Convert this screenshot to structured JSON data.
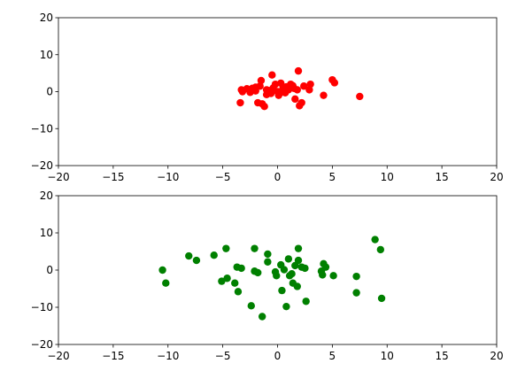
{
  "chart_data": [
    {
      "type": "scatter",
      "color": "#ff0000",
      "x": [
        -3.4,
        -3.2,
        -3.3,
        -2.8,
        -2.3,
        -2.0,
        -1.6,
        -1.5,
        -1.8,
        -1.4,
        -1.2,
        -1.0,
        -0.8,
        -0.5,
        -0.4,
        -0.2,
        0,
        0.2,
        0.3,
        0.5,
        0.7,
        1.0,
        1.2,
        1.4,
        1.6,
        1.8,
        1.9,
        2.0,
        2.2,
        2.4,
        2.9,
        3.0,
        4.2,
        5.0,
        5.2,
        7.5,
        -2.5,
        -2.0,
        -1.0,
        0.1,
        0.8,
        -0.6,
        1.5
      ],
      "values": [
        -3,
        0,
        0.5,
        0.8,
        0.9,
        1.2,
        1.5,
        3,
        -3,
        -3.3,
        -4,
        -0.8,
        0.3,
        4.5,
        1,
        2,
        0,
        -0.5,
        2.3,
        1,
        -0.3,
        0.5,
        2,
        1.6,
        -2,
        0.5,
        5.6,
        -3.8,
        -3,
        1.5,
        0.5,
        2,
        -1,
        3.2,
        2.4,
        -1.3,
        -0.2,
        0.2,
        0.5,
        -1,
        1.3,
        -0.5,
        0.9
      ],
      "xlim": [
        -20,
        20
      ],
      "xticks": [
        {
          "value": -20,
          "label": "−20"
        },
        {
          "value": -15,
          "label": "−15"
        },
        {
          "value": -10,
          "label": "−10"
        },
        {
          "value": -5,
          "label": "−5"
        },
        0,
        5,
        10,
        15,
        20
      ],
      "ylim": [
        -20,
        20
      ],
      "yticks": [
        {
          "value": -20,
          "label": "−20"
        },
        {
          "value": -10,
          "label": "−10"
        },
        0,
        10,
        20
      ]
    },
    {
      "type": "scatter",
      "color": "#008000",
      "x": [
        -10.5,
        -10.2,
        -8.1,
        -7.4,
        -5.8,
        -5.1,
        -4.7,
        -4.6,
        -3.9,
        -3.7,
        -3.6,
        -3.3,
        -2.4,
        -2.1,
        -2.1,
        -1.8,
        -1.4,
        -0.9,
        -0.9,
        -0.2,
        -0.1,
        0.3,
        0.4,
        0.6,
        0.8,
        1.0,
        1.1,
        1.3,
        1.4,
        1.6,
        1.8,
        1.9,
        1.9,
        2.2,
        2.5,
        2.6,
        4.0,
        4.1,
        4.2,
        4.4,
        5.1,
        7.2,
        7.2,
        8.9,
        9.4,
        9.5
      ],
      "values": [
        0,
        -3.5,
        3.8,
        2.6,
        4,
        -3,
        5.8,
        -2.2,
        -3.5,
        0.8,
        -5.8,
        0.5,
        -9.6,
        5.8,
        -0.3,
        -0.7,
        -12.5,
        4.3,
        2.2,
        -0.5,
        -1.5,
        1.4,
        -5.5,
        0.1,
        -9.8,
        3,
        -1.5,
        -1.0,
        -3.5,
        1.2,
        -4.4,
        5.8,
        2.6,
        0.8,
        0.5,
        -8.4,
        -0.3,
        -1.3,
        1.7,
        0.8,
        -1.5,
        -1.7,
        -6.1,
        8.2,
        5.5,
        -7.6
      ],
      "xlim": [
        -20,
        20
      ],
      "xticks": [
        {
          "value": -20,
          "label": "−20"
        },
        {
          "value": -15,
          "label": "−15"
        },
        {
          "value": -10,
          "label": "−10"
        },
        {
          "value": -5,
          "label": "−5"
        },
        0,
        5,
        10,
        15,
        20
      ],
      "ylim": [
        -20,
        20
      ],
      "yticks": [
        {
          "value": -20,
          "label": "−20"
        },
        {
          "value": -10,
          "label": "−10"
        },
        0,
        10,
        20
      ]
    }
  ]
}
